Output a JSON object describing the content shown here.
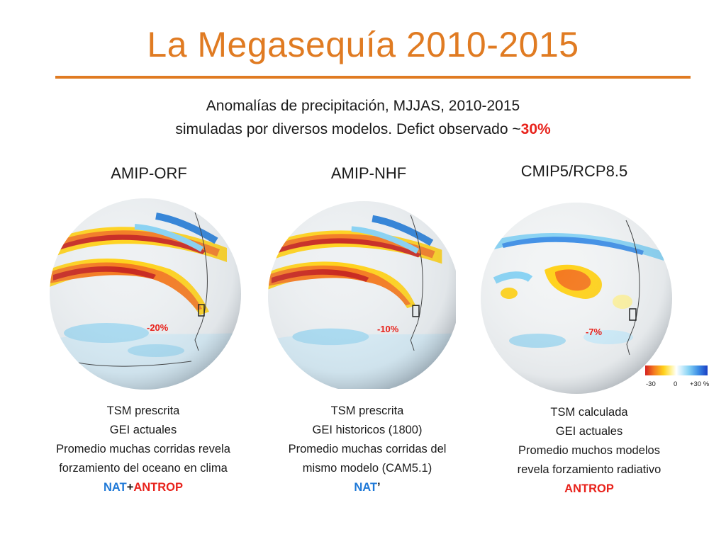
{
  "slide": {
    "title": "La Megasequía 2010-2015",
    "subtitle_line1": "Anomalías de precipitación, MJJAS, 2010-2015",
    "subtitle_line2_text": "simuladas por diversos modelos. Defict observado ~",
    "subtitle_line2_highlight": "30%",
    "colors": {
      "title": "#e07b22",
      "highlight_red": "#e8221b",
      "highlight_blue": "#1e78d7"
    }
  },
  "panels": [
    {
      "heading": "AMIP-ORF",
      "region_value": "-20%",
      "caption_lines": [
        "TSM prescrita",
        "GEI actuales",
        "Promedio muchas corridas revela",
        "forzamiento del oceano en clima"
      ],
      "tag_blue": "NAT",
      "tag_sep": "+",
      "tag_red": "ANTROP"
    },
    {
      "heading": "AMIP-NHF",
      "region_value": "-10%",
      "caption_lines": [
        "TSM prescrita",
        "GEI historicos (1800)",
        "Promedio muchas corridas del",
        "mismo modelo (CAM5.1)"
      ],
      "tag_blue": "NAT",
      "tag_sep": "’",
      "tag_red": ""
    },
    {
      "heading": "CMIP5/RCP8.5",
      "region_value": "-7%",
      "caption_lines": [
        "TSM calculada",
        "GEI actuales",
        "Promedio muchos modelos",
        "revela forzamiento radiativo"
      ],
      "tag_blue": "",
      "tag_sep": "",
      "tag_red": "ANTROP"
    }
  ],
  "legend": {
    "ticks": [
      "-30",
      "0",
      "+30 %"
    ],
    "colors": [
      "#d42020",
      "#f47a20",
      "#ffd21c",
      "#ffffff",
      "#86d2f4",
      "#1a3fc4"
    ]
  }
}
